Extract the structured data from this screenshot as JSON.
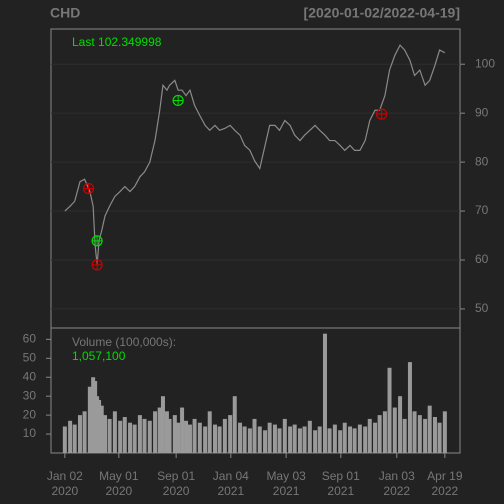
{
  "chart_data": [
    {
      "type": "line",
      "title": "CHD",
      "subtitle": "[2020-01-02/2022-04-19]",
      "annotation": "Last 102.349998",
      "xlim": [
        -21,
        600
      ],
      "ylim": [
        46.1,
        107.2
      ],
      "yticks": [
        50,
        60,
        70,
        80,
        90,
        100
      ],
      "grid": true,
      "series": [
        {
          "color": "#8a8a8a",
          "x": [
            0,
            8,
            15,
            23,
            30,
            38,
            43,
            46,
            49,
            52,
            56,
            61,
            68,
            76,
            84,
            91,
            99,
            106,
            114,
            121,
            129,
            137,
            144,
            149,
            155,
            159,
            167,
            172,
            178,
            184,
            190,
            197,
            205,
            213,
            220,
            228,
            235,
            243,
            251,
            258,
            266,
            273,
            281,
            288,
            296,
            304,
            311,
            319,
            326,
            334,
            342,
            349,
            357,
            364,
            372,
            380,
            387,
            395,
            402,
            410,
            418,
            425,
            433,
            440,
            448,
            456,
            463,
            471,
            478,
            486,
            493,
            501,
            509,
            516,
            524,
            531,
            539,
            547,
            554,
            562,
            569,
            577
          ],
          "values": [
            70,
            71,
            72,
            76,
            76.5,
            74,
            71,
            63,
            59,
            64,
            66,
            69,
            71,
            73,
            74,
            75,
            74,
            75,
            77,
            78,
            80,
            84.5,
            90.5,
            95.7,
            94.7,
            95.7,
            96.7,
            94.7,
            94.7,
            93.6,
            94.7,
            91.6,
            89.5,
            87.5,
            86.5,
            87.5,
            86.5,
            86.9,
            87.5,
            86.5,
            85.5,
            83.4,
            82.4,
            80.3,
            78.7,
            83.4,
            87.5,
            87.5,
            86.5,
            88.5,
            87.5,
            85.5,
            84.4,
            85.5,
            86.5,
            87.5,
            86.5,
            85.5,
            84.4,
            84.4,
            83.4,
            82.4,
            83.4,
            82.4,
            82.4,
            84.4,
            88.5,
            90.6,
            90.6,
            93.6,
            98.8,
            101.8,
            103.9,
            102.9,
            100.8,
            97.7,
            98.8,
            95.7,
            96.7,
            99.8,
            102.9,
            102.35
          ]
        }
      ],
      "markers": [
        {
          "color": "#00dd00",
          "x": [
            172,
            49
          ],
          "values": [
            92.6,
            63.9
          ]
        },
        {
          "color": "#cc0000",
          "x": [
            36,
            49,
            481
          ],
          "values": [
            74.6,
            59.0,
            89.8
          ]
        }
      ]
    },
    {
      "type": "bar",
      "title": "Volume (100,000s):",
      "annotation": "1,057,100",
      "xlim": [
        -21,
        600
      ],
      "ylim": [
        0,
        66
      ],
      "yticks": [
        10,
        20,
        30,
        40,
        50,
        60
      ],
      "color": "#9a9a9a",
      "xticks": [
        {
          "value": 0,
          "label": "Jan 02\n2020"
        },
        {
          "value": 82,
          "label": "May 01\n2020"
        },
        {
          "value": 169,
          "label": "Sep 01\n2020"
        },
        {
          "value": 252,
          "label": "Jan 04\n2021"
        },
        {
          "value": 336,
          "label": "May 03\n2021"
        },
        {
          "value": 419,
          "label": "Sep 01\n2021"
        },
        {
          "value": 504,
          "label": "Jan 03\n2022"
        },
        {
          "value": 577,
          "label": "Apr 19\n2022"
        }
      ],
      "x": [
        0,
        8,
        15,
        23,
        30,
        38,
        43,
        46,
        49,
        52,
        56,
        61,
        68,
        76,
        84,
        91,
        99,
        106,
        114,
        121,
        129,
        137,
        144,
        149,
        155,
        159,
        167,
        172,
        178,
        184,
        190,
        197,
        205,
        213,
        220,
        228,
        235,
        243,
        251,
        258,
        266,
        273,
        281,
        288,
        296,
        304,
        311,
        319,
        326,
        334,
        342,
        349,
        357,
        364,
        372,
        380,
        387,
        395,
        402,
        410,
        418,
        425,
        433,
        440,
        448,
        456,
        463,
        471,
        478,
        486,
        493,
        501,
        509,
        516,
        524,
        531,
        539,
        547,
        554,
        562,
        569,
        577
      ],
      "values": [
        14,
        17,
        15,
        20,
        22,
        35,
        40,
        38,
        30,
        28,
        25,
        20,
        18,
        22,
        17,
        19,
        16,
        15,
        20,
        18,
        17,
        22,
        24,
        30,
        22,
        18,
        20,
        16,
        24,
        17,
        15,
        18,
        16,
        14,
        22,
        15,
        14,
        18,
        20,
        30,
        16,
        14,
        13,
        18,
        14,
        12,
        16,
        15,
        13,
        18,
        14,
        15,
        13,
        14,
        17,
        12,
        14,
        63,
        13,
        15,
        12,
        16,
        14,
        13,
        15,
        14,
        18,
        16,
        20,
        22,
        45,
        24,
        30,
        18,
        48,
        22,
        20,
        18,
        25,
        19,
        16,
        22
      ]
    }
  ]
}
